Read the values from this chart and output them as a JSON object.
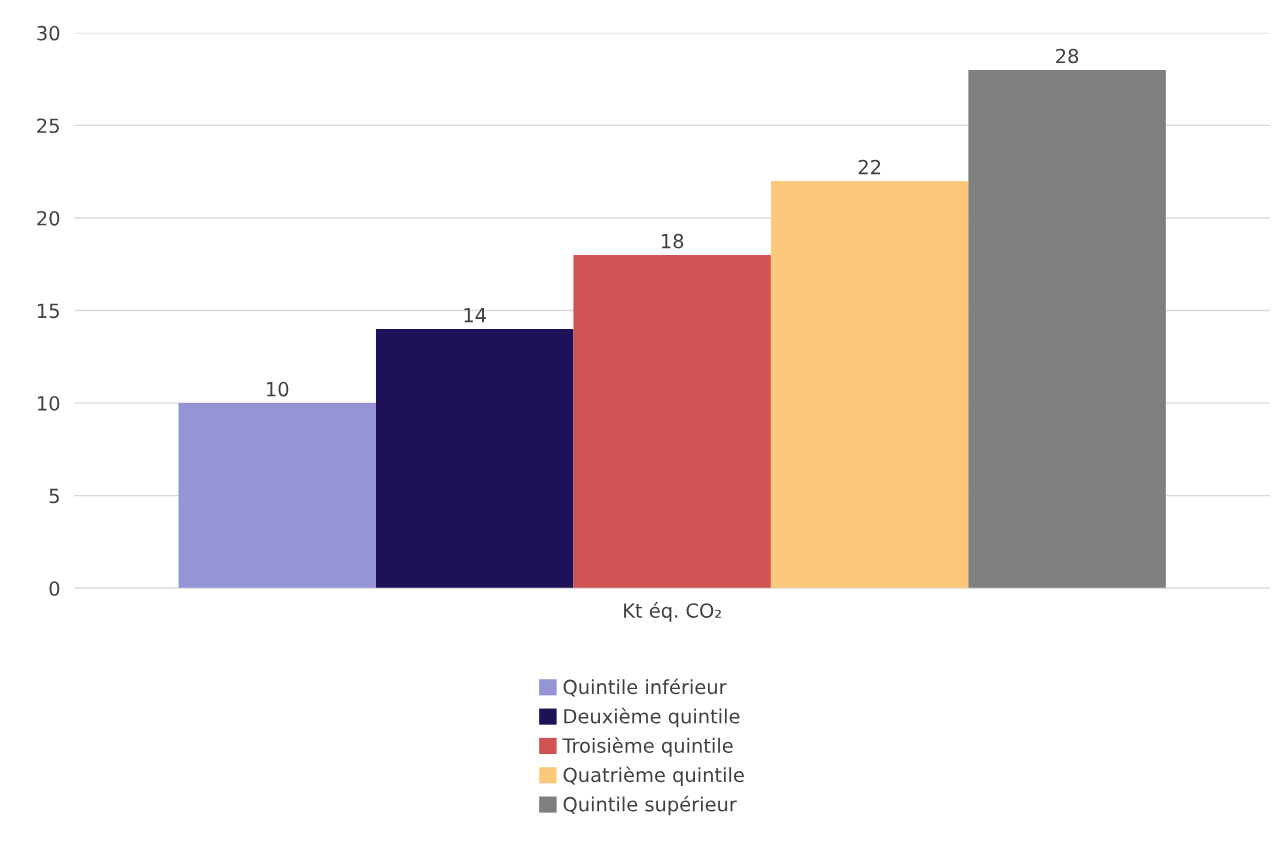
{
  "chart_data": {
    "type": "bar",
    "categories": [
      "Kt éq. CO₂"
    ],
    "series": [
      {
        "name": "Quintile inférieur",
        "color": "#9494d6",
        "values": [
          10
        ]
      },
      {
        "name": "Deuxième quintile",
        "color": "#1f1157",
        "values": [
          14
        ]
      },
      {
        "name": "Troisième quintile",
        "color": "#d05353",
        "values": [
          18
        ]
      },
      {
        "name": "Quatrième quintile",
        "color": "#fcc97c",
        "values": [
          22
        ]
      },
      {
        "name": "Quintile supérieur",
        "color": "#7f7f7f",
        "values": [
          28
        ]
      }
    ],
    "ylim": [
      0,
      30
    ],
    "yticks": [
      0,
      5,
      10,
      15,
      20,
      25,
      30
    ],
    "grid": "y",
    "legend": "bottom",
    "data_labels": true
  }
}
